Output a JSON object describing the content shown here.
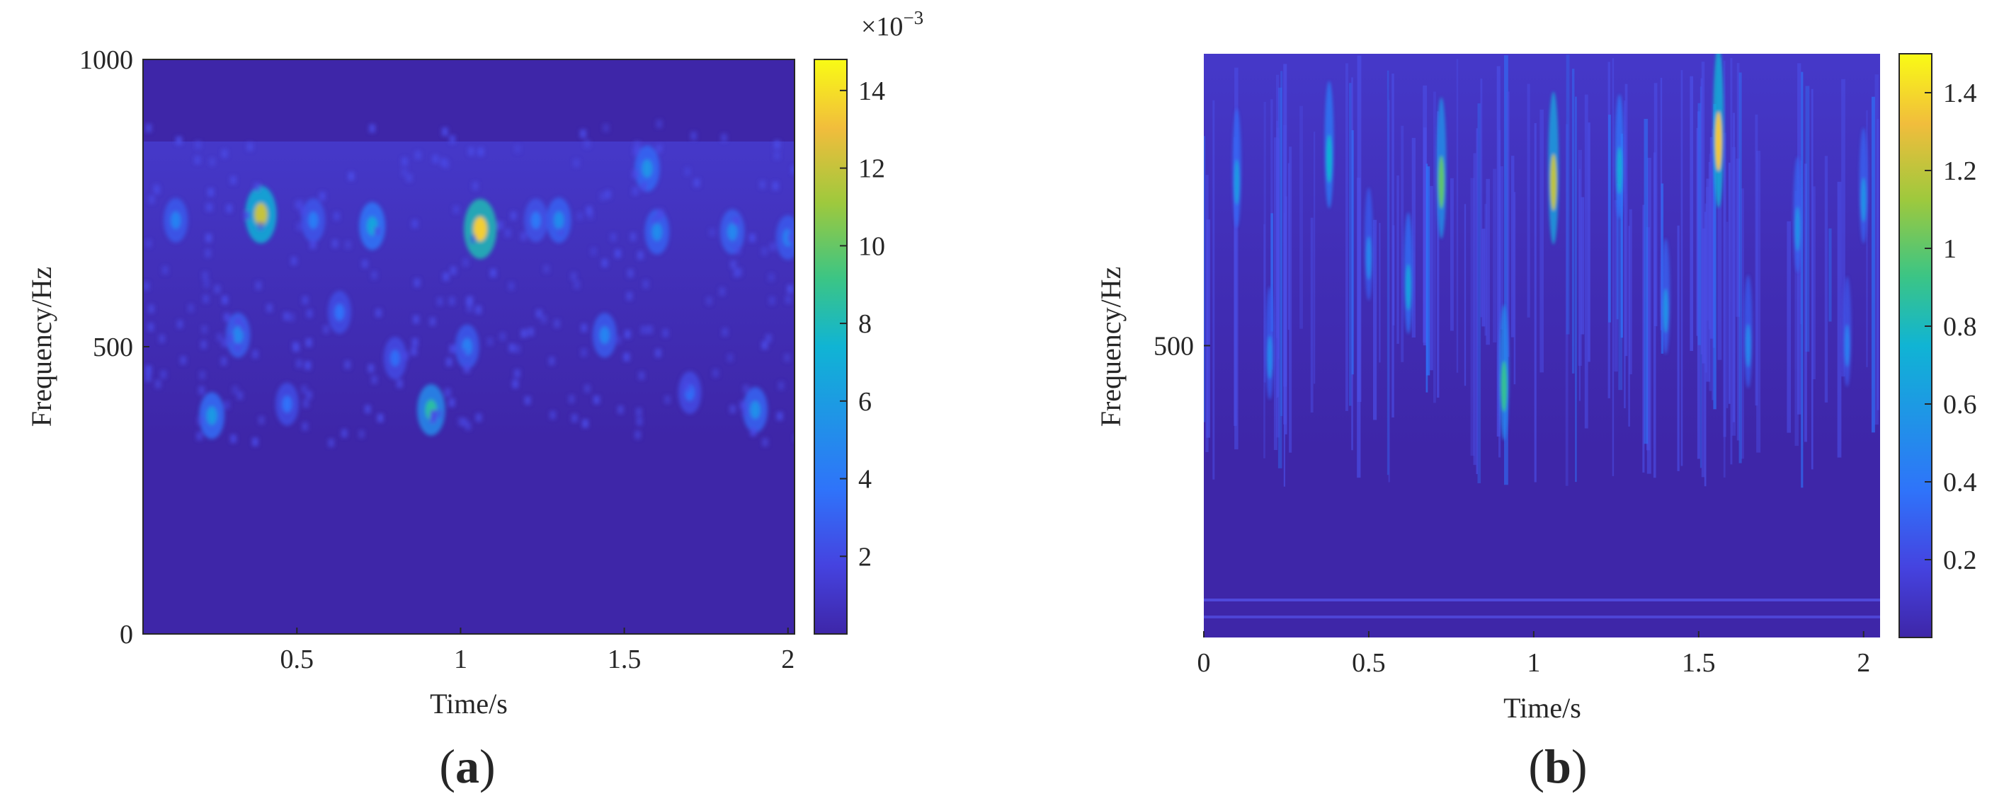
{
  "chart_data": [
    {
      "type": "heatmap",
      "panel_label": "a",
      "xlabel": "Time/s",
      "ylabel": "Frequency/Hz",
      "xlim": [
        0.03,
        2.02
      ],
      "ylim": [
        0,
        1000
      ],
      "xticks": [
        0.5,
        1,
        1.5,
        2
      ],
      "xtick_labels": [
        "0.5",
        "1",
        "1.5",
        "2"
      ],
      "yticks": [
        0,
        500,
        1000
      ],
      "ytick_labels": [
        "0",
        "500",
        "1000"
      ],
      "colorbar": {
        "range": [
          0,
          0.0148
        ],
        "ticks": [
          0.002,
          0.004,
          0.006,
          0.008,
          0.01,
          0.012,
          0.014
        ],
        "tick_labels": [
          "2",
          "4",
          "6",
          "8",
          "10",
          "12",
          "14"
        ],
        "multiplier_label": "×10",
        "multiplier_exponent": "−3"
      },
      "hotspots": [
        {
          "t": 0.39,
          "f": 730,
          "v": 0.012
        },
        {
          "t": 1.06,
          "f": 705,
          "v": 0.0135
        },
        {
          "t": 0.91,
          "f": 390,
          "v": 0.0085
        },
        {
          "t": 0.73,
          "f": 710,
          "v": 0.0065
        },
        {
          "t": 0.24,
          "f": 380,
          "v": 0.0058
        },
        {
          "t": 1.57,
          "f": 810,
          "v": 0.0055
        },
        {
          "t": 1.3,
          "f": 720,
          "v": 0.005
        },
        {
          "t": 0.32,
          "f": 520,
          "v": 0.0048
        },
        {
          "t": 1.44,
          "f": 520,
          "v": 0.0046
        },
        {
          "t": 0.55,
          "f": 720,
          "v": 0.0042
        },
        {
          "t": 1.83,
          "f": 700,
          "v": 0.0048
        },
        {
          "t": 1.9,
          "f": 390,
          "v": 0.0052
        },
        {
          "t": 2.0,
          "f": 690,
          "v": 0.0045
        },
        {
          "t": 0.13,
          "f": 720,
          "v": 0.0045
        },
        {
          "t": 1.02,
          "f": 500,
          "v": 0.0044
        },
        {
          "t": 1.6,
          "f": 700,
          "v": 0.005
        },
        {
          "t": 0.63,
          "f": 560,
          "v": 0.0036
        },
        {
          "t": 0.8,
          "f": 480,
          "v": 0.0034
        },
        {
          "t": 1.23,
          "f": 720,
          "v": 0.004
        },
        {
          "t": 0.47,
          "f": 400,
          "v": 0.0036
        },
        {
          "t": 1.7,
          "f": 420,
          "v": 0.0034
        }
      ]
    },
    {
      "type": "heatmap",
      "panel_label": "b",
      "xlabel": "Time/s",
      "ylabel": "Frequency/Hz",
      "xlim": [
        0,
        2.05
      ],
      "ylim": [
        0,
        1000
      ],
      "xticks": [
        0,
        0.5,
        1,
        1.5,
        2
      ],
      "xtick_labels": [
        "0",
        "0.5",
        "1",
        "1.5",
        "2"
      ],
      "yticks": [
        500
      ],
      "ytick_labels": [
        "500"
      ],
      "colorbar": {
        "range": [
          0,
          1.5
        ],
        "ticks": [
          0.2,
          0.4,
          0.6,
          0.8,
          1.0,
          1.2,
          1.4
        ],
        "tick_labels": [
          "0.2",
          "0.4",
          "0.6",
          "0.8",
          "1",
          "1.2",
          "1.4"
        ]
      },
      "hotspots": [
        {
          "t": 1.56,
          "f": 850,
          "v": 1.35
        },
        {
          "t": 1.06,
          "f": 780,
          "v": 1.2
        },
        {
          "t": 0.72,
          "f": 780,
          "v": 1.0
        },
        {
          "t": 0.91,
          "f": 430,
          "v": 0.9
        },
        {
          "t": 0.38,
          "f": 820,
          "v": 0.75
        },
        {
          "t": 1.26,
          "f": 800,
          "v": 0.7
        },
        {
          "t": 0.1,
          "f": 780,
          "v": 0.6
        },
        {
          "t": 0.62,
          "f": 600,
          "v": 0.65
        },
        {
          "t": 1.4,
          "f": 560,
          "v": 0.55
        },
        {
          "t": 1.8,
          "f": 700,
          "v": 0.55
        },
        {
          "t": 0.2,
          "f": 480,
          "v": 0.5
        },
        {
          "t": 0.5,
          "f": 650,
          "v": 0.5
        },
        {
          "t": 1.65,
          "f": 500,
          "v": 0.5
        },
        {
          "t": 2.0,
          "f": 750,
          "v": 0.55
        },
        {
          "t": 1.95,
          "f": 500,
          "v": 0.45
        }
      ]
    }
  ]
}
